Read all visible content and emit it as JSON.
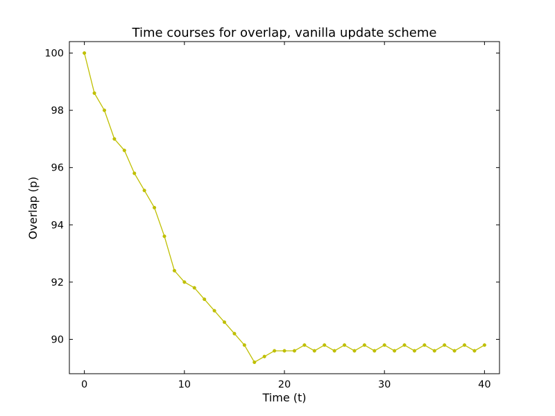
{
  "chart_data": {
    "type": "line",
    "title": "Time courses for overlap, vanilla update scheme",
    "xlabel": "Time (t)",
    "ylabel": "Overlap (p)",
    "xlim": [
      -1.5,
      41.5
    ],
    "ylim": [
      88.8,
      100.4
    ],
    "xticks": [
      0,
      10,
      20,
      30,
      40
    ],
    "yticks": [
      90,
      92,
      94,
      96,
      98,
      100
    ],
    "grid": false,
    "series": [
      {
        "color": "#bfbf00",
        "x": [
          0,
          1,
          2,
          3,
          4,
          5,
          6,
          7,
          8,
          9,
          10,
          11,
          12,
          13,
          14,
          15,
          16,
          17,
          18,
          19,
          20,
          21,
          22,
          23,
          24,
          25,
          26,
          27,
          28,
          29,
          30,
          31,
          32,
          33,
          34,
          35,
          36,
          37,
          38,
          39,
          40
        ],
        "y": [
          100.0,
          98.6,
          98.0,
          97.0,
          96.6,
          95.8,
          95.2,
          94.6,
          93.6,
          92.4,
          92.0,
          91.8,
          91.4,
          91.0,
          90.6,
          90.2,
          89.8,
          89.2,
          89.4,
          89.6,
          89.6,
          89.6,
          89.8,
          89.6,
          89.8,
          89.6,
          89.8,
          89.6,
          89.8,
          89.6,
          89.8,
          89.6,
          89.8,
          89.6,
          89.8,
          89.6,
          89.8,
          89.6,
          89.8,
          89.6,
          89.8
        ]
      }
    ]
  }
}
